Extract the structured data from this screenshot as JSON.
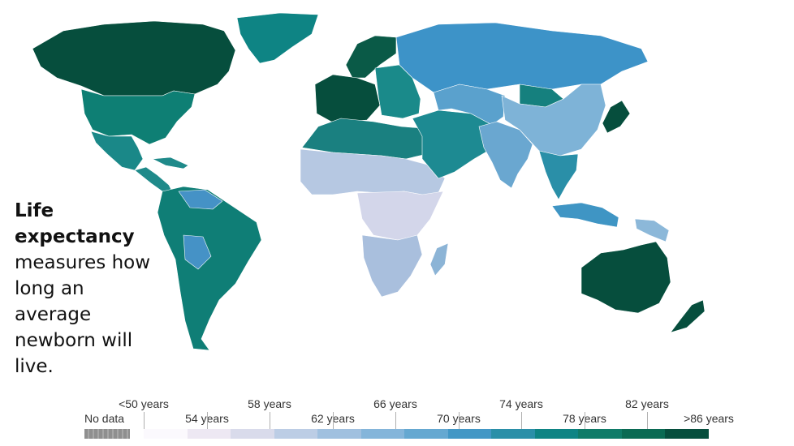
{
  "caption": {
    "bold": "Life expectancy",
    "rest": "measures how long an average newborn will live."
  },
  "legend": {
    "no_data_label": "No data",
    "no_data_color": "#8f8f8f",
    "top_labels": [
      "<50 years",
      "58 years",
      "66 years",
      "74 years",
      "82 years"
    ],
    "bottom_labels": [
      "54 years",
      "62 years",
      "70 years",
      "78 years",
      ">86 years"
    ],
    "bin_colors": [
      "#fbf9fd",
      "#ede8f3",
      "#d9dbeb",
      "#bccde5",
      "#a0c0df",
      "#84b5da",
      "#65a8d1",
      "#4397c5",
      "#2a8fa8",
      "#0e8484",
      "#0f7b68",
      "#0a6a53",
      "#064e3d"
    ]
  },
  "regions": [
    {
      "name": "Canada",
      "color": "#064e3d"
    },
    {
      "name": "Greenland",
      "color": "#0e8484"
    },
    {
      "name": "United States",
      "color": "#0e7f74"
    },
    {
      "name": "Mexico",
      "color": "#1a8888"
    },
    {
      "name": "Central America",
      "color": "#1f8a8a"
    },
    {
      "name": "South America",
      "color": "#0f7e76"
    },
    {
      "name": "Bolivia",
      "color": "#4592c6"
    },
    {
      "name": "Western Europe",
      "color": "#064e3d"
    },
    {
      "name": "Scandinavia",
      "color": "#0a5a47"
    },
    {
      "name": "Eastern Europe",
      "color": "#1a8a8a"
    },
    {
      "name": "Russia",
      "color": "#3d93c8"
    },
    {
      "name": "North Africa",
      "color": "#1a8080"
    },
    {
      "name": "Sahel",
      "color": "#b6c8e2"
    },
    {
      "name": "Central Africa",
      "color": "#d3d6ea"
    },
    {
      "name": "Southern Africa",
      "color": "#a9bfdd"
    },
    {
      "name": "Madagascar",
      "color": "#8cb4d6"
    },
    {
      "name": "Middle East",
      "color": "#1d8a92"
    },
    {
      "name": "Central Asia",
      "color": "#5aa1cd"
    },
    {
      "name": "India",
      "color": "#6aa7d0"
    },
    {
      "name": "China",
      "color": "#15807e"
    },
    {
      "name": "Mongolia",
      "color": "#7eb3d7"
    },
    {
      "name": "Southeast Asia",
      "color": "#2a8fa8"
    },
    {
      "name": "Japan",
      "color": "#064e3d"
    },
    {
      "name": "Indonesia",
      "color": "#3f95c4"
    },
    {
      "name": "Papua New Guinea",
      "color": "#8cb8d9"
    },
    {
      "name": "Australia",
      "color": "#064e3d"
    },
    {
      "name": "New Zealand",
      "color": "#064e3d"
    }
  ]
}
